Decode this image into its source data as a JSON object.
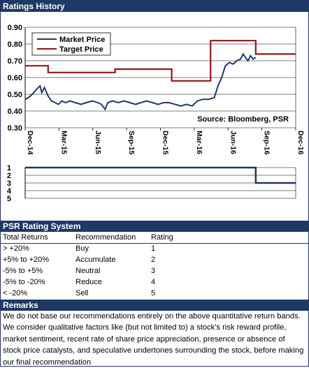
{
  "header": {
    "title": "Ratings History"
  },
  "chart_data": [
    {
      "type": "line",
      "ylim": [
        0.3,
        0.9
      ],
      "yticks": [
        "0.90",
        "0.80",
        "0.70",
        "0.60",
        "0.50",
        "0.40",
        "0.30"
      ],
      "xticks": [
        "Dec-14",
        "Mar-15",
        "Jun-15",
        "Sep-15",
        "Dec-15",
        "Mar-16",
        "Jun-16",
        "Sep-16",
        "Dec-16"
      ],
      "source_note": "Source: Bloomberg, PSR",
      "grid": true,
      "legend_position": "top-left",
      "series": [
        {
          "name": "Market Price",
          "color": "#1f3864",
          "points": [
            [
              "2014-12-01",
              0.47
            ],
            [
              "2014-12-10",
              0.48
            ],
            [
              "2014-12-20",
              0.5
            ],
            [
              "2015-01-01",
              0.53
            ],
            [
              "2015-01-10",
              0.55
            ],
            [
              "2015-01-15",
              0.51
            ],
            [
              "2015-01-22",
              0.54
            ],
            [
              "2015-02-01",
              0.49
            ],
            [
              "2015-02-10",
              0.46
            ],
            [
              "2015-02-20",
              0.45
            ],
            [
              "2015-03-01",
              0.44
            ],
            [
              "2015-03-10",
              0.46
            ],
            [
              "2015-03-20",
              0.45
            ],
            [
              "2015-04-01",
              0.46
            ],
            [
              "2015-04-15",
              0.45
            ],
            [
              "2015-05-01",
              0.44
            ],
            [
              "2015-05-15",
              0.45
            ],
            [
              "2015-06-01",
              0.46
            ],
            [
              "2015-06-15",
              0.45
            ],
            [
              "2015-06-25",
              0.44
            ],
            [
              "2015-07-05",
              0.41
            ],
            [
              "2015-07-12",
              0.45
            ],
            [
              "2015-07-25",
              0.46
            ],
            [
              "2015-08-10",
              0.45
            ],
            [
              "2015-08-25",
              0.46
            ],
            [
              "2015-09-10",
              0.45
            ],
            [
              "2015-09-25",
              0.44
            ],
            [
              "2015-10-10",
              0.45
            ],
            [
              "2015-10-25",
              0.46
            ],
            [
              "2015-11-10",
              0.45
            ],
            [
              "2015-11-25",
              0.44
            ],
            [
              "2015-12-10",
              0.45
            ],
            [
              "2015-12-25",
              0.45
            ],
            [
              "2016-01-10",
              0.44
            ],
            [
              "2016-01-25",
              0.43
            ],
            [
              "2016-02-10",
              0.44
            ],
            [
              "2016-02-25",
              0.43
            ],
            [
              "2016-03-10",
              0.46
            ],
            [
              "2016-03-25",
              0.47
            ],
            [
              "2016-04-10",
              0.47
            ],
            [
              "2016-04-25",
              0.48
            ],
            [
              "2016-05-05",
              0.55
            ],
            [
              "2016-05-15",
              0.6
            ],
            [
              "2016-05-25",
              0.67
            ],
            [
              "2016-06-05",
              0.69
            ],
            [
              "2016-06-15",
              0.68
            ],
            [
              "2016-06-25",
              0.7
            ],
            [
              "2016-07-05",
              0.71
            ],
            [
              "2016-07-12",
              0.74
            ],
            [
              "2016-07-18",
              0.72
            ],
            [
              "2016-07-25",
              0.7
            ],
            [
              "2016-08-01",
              0.73
            ],
            [
              "2016-08-08",
              0.71
            ],
            [
              "2016-08-15",
              0.72
            ]
          ]
        },
        {
          "name": "Target Price",
          "color": "#8b1a1a",
          "points": [
            [
              "2014-12-01",
              0.67
            ],
            [
              "2015-02-01",
              0.67
            ],
            [
              "2015-02-01",
              0.63
            ],
            [
              "2015-08-01",
              0.63
            ],
            [
              "2015-08-01",
              0.65
            ],
            [
              "2016-01-01",
              0.65
            ],
            [
              "2016-01-01",
              0.58
            ],
            [
              "2016-04-15",
              0.58
            ],
            [
              "2016-04-15",
              0.82
            ],
            [
              "2016-08-15",
              0.82
            ],
            [
              "2016-08-15",
              0.74
            ],
            [
              "2016-12-01",
              0.74
            ]
          ]
        }
      ]
    },
    {
      "type": "line",
      "ylim": [
        5,
        1
      ],
      "yticks": [
        "1",
        "2",
        "3",
        "4",
        "5"
      ],
      "series": [
        {
          "color": "#1f3864",
          "points": [
            [
              "2014-12-01",
              1
            ],
            [
              "2016-08-15",
              1
            ],
            [
              "2016-08-15",
              3
            ],
            [
              "2016-12-01",
              3
            ]
          ]
        }
      ]
    }
  ],
  "psr_rating": {
    "title": "PSR Rating System",
    "headers": [
      "Total Returns",
      "Recommendation",
      "Rating"
    ],
    "rows": [
      [
        "> +20%",
        "Buy",
        "1"
      ],
      [
        "+5% to +20%",
        "Accumulate",
        "2"
      ],
      [
        "-5% to +5%",
        "Neutral",
        "3"
      ],
      [
        "-5% to -20%",
        "Reduce",
        "4"
      ],
      [
        "< -20%",
        "Sell",
        "5"
      ]
    ]
  },
  "remarks": {
    "title": "Remarks",
    "text": "We do not base our recommendations entirely on the  above quantitative return bands.  We consider qualitative factors like (but not limited to) a stock's risk reward profile, market sentiment, recent rate of share price appreciation, presence or absence of stock price catalysts, and speculative undertones surrounding the stock, before making our final recommendation"
  }
}
